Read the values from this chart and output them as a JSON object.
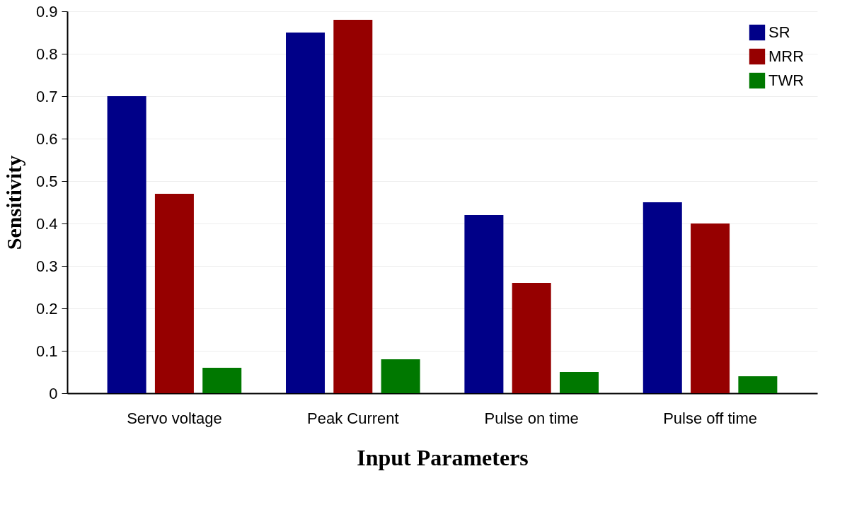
{
  "chart_data": {
    "type": "bar",
    "xlabel": "Input Parameters",
    "ylabel": "Sensitivity",
    "categories": [
      "Servo voltage",
      "Peak Current",
      "Pulse on time",
      "Pulse off time"
    ],
    "series": [
      {
        "name": "SR",
        "color": "#000088",
        "values": [
          0.7,
          0.85,
          0.42,
          0.45
        ]
      },
      {
        "name": "MRR",
        "color": "#960000",
        "values": [
          0.47,
          0.88,
          0.26,
          0.4
        ]
      },
      {
        "name": "TWR",
        "color": "#007800",
        "values": [
          0.06,
          0.08,
          0.05,
          0.04
        ]
      }
    ],
    "ylim": [
      0,
      0.9
    ],
    "yticks": [
      0,
      0.1,
      0.2,
      0.3,
      0.4,
      0.5,
      0.6,
      0.7,
      0.8,
      0.9
    ],
    "grid": "y",
    "legend": "top right"
  }
}
